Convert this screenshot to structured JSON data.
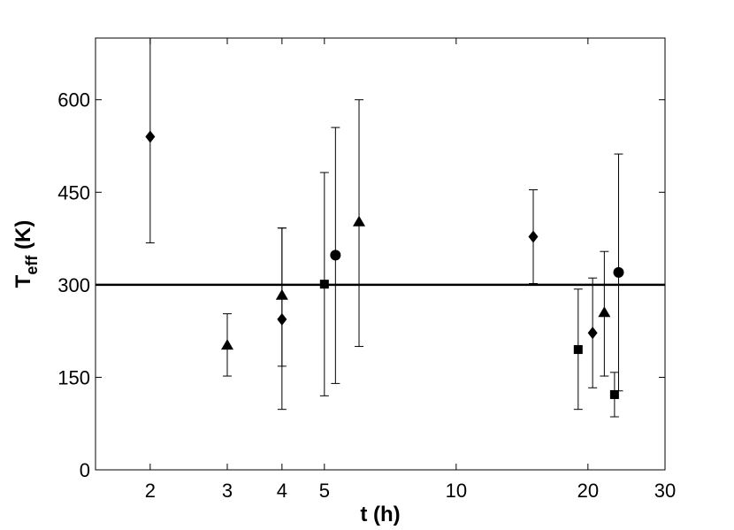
{
  "chart_data": {
    "type": "scatter",
    "xlabel": "t (h)",
    "ylabel_main": "T",
    "ylabel_sub": "eff",
    "ylabel_unit": " (K)",
    "x_scale": "log",
    "xlim": [
      1.5,
      30
    ],
    "ylim": [
      0,
      700
    ],
    "xticks": [
      2,
      3,
      4,
      5,
      10,
      20,
      30
    ],
    "yticks": [
      0,
      150,
      300,
      450,
      600
    ],
    "grid": false,
    "reference_line": {
      "y": 300
    },
    "series": [
      {
        "marker": "diamond",
        "points": [
          {
            "x": 2,
            "y": 540,
            "ylow": 368,
            "yhigh": 700
          },
          {
            "x": 4,
            "y": 244,
            "ylow": 98,
            "yhigh": 392
          },
          {
            "x": 15,
            "y": 378,
            "ylow": 302,
            "yhigh": 454
          },
          {
            "x": 20.5,
            "y": 222,
            "ylow": 133,
            "yhigh": 311
          }
        ]
      },
      {
        "marker": "triangle",
        "points": [
          {
            "x": 3,
            "y": 202,
            "ylow": 152,
            "yhigh": 253
          },
          {
            "x": 4,
            "y": 283,
            "ylow": 168,
            "yhigh": 392
          },
          {
            "x": 6,
            "y": 402,
            "ylow": 200,
            "yhigh": 600
          },
          {
            "x": 21.8,
            "y": 255,
            "ylow": 152,
            "yhigh": 354
          }
        ]
      },
      {
        "marker": "square",
        "points": [
          {
            "x": 5,
            "y": 301,
            "ylow": 120,
            "yhigh": 482
          },
          {
            "x": 19,
            "y": 195,
            "ylow": 98,
            "yhigh": 293
          },
          {
            "x": 23,
            "y": 122,
            "ylow": 86,
            "yhigh": 158
          }
        ]
      },
      {
        "marker": "circle",
        "points": [
          {
            "x": 5.3,
            "y": 348,
            "ylow": 140,
            "yhigh": 555
          },
          {
            "x": 23.5,
            "y": 320,
            "ylow": 128,
            "yhigh": 512
          }
        ]
      }
    ]
  }
}
